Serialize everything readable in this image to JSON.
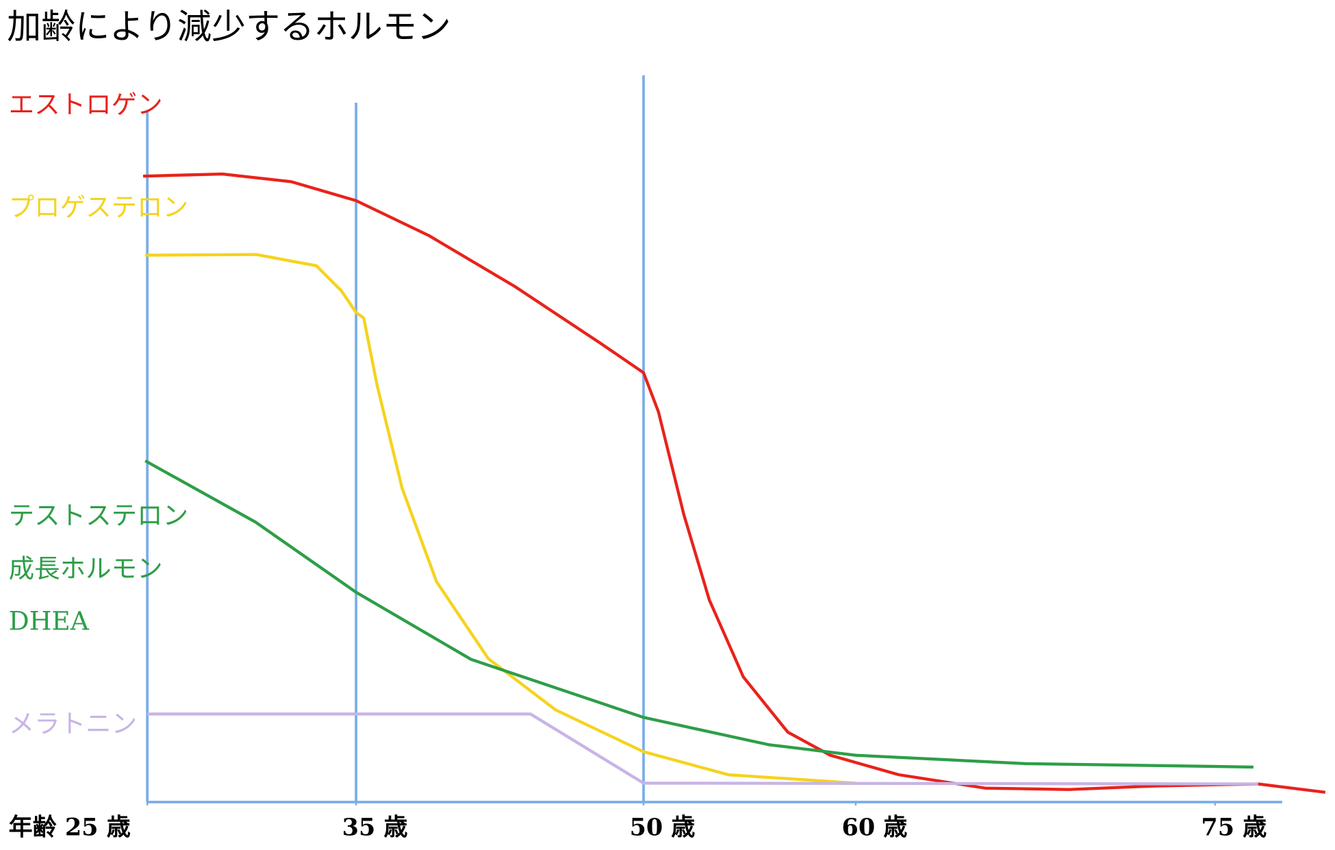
{
  "chart_data": {
    "type": "line",
    "title": "加齢により減少するホルモン",
    "xlim": [
      25,
      77.8
    ],
    "ylim": [
      0,
      100
    ],
    "xticks": [
      {
        "value": 25,
        "label": "年齢 25 歳"
      },
      {
        "value": 35,
        "label": "35 歳"
      },
      {
        "value": 50,
        "label": "50 歳"
      },
      {
        "value": 60,
        "label": "60 歳"
      },
      {
        "value": 75,
        "label": "75 歳"
      }
    ],
    "vlines": [
      25,
      35,
      50
    ],
    "axis_color": "#7aaee6",
    "series": [
      {
        "names": [
          "エストロゲン"
        ],
        "color": "#e8231c",
        "x": [
          24.8,
          28.6,
          31.9,
          35,
          38.8,
          43.3,
          47.7,
          50,
          50.7,
          51.9,
          53.1,
          54.7,
          56.8,
          58.8,
          61.8,
          65.4,
          68.9,
          72.5,
          76.8,
          79.6
        ],
        "values": [
          89.5,
          89.8,
          88.7,
          86.0,
          81.0,
          73.7,
          65.7,
          61.4,
          55.8,
          41.1,
          28.9,
          17.9,
          10.0,
          6.7,
          3.9,
          2.0,
          1.8,
          2.3,
          2.6,
          1.4
        ]
      },
      {
        "names": [
          "プロゲステロン"
        ],
        "color": "#f5d31e",
        "x": [
          24.9,
          30.2,
          33.1,
          34.3,
          35,
          35.4,
          36.1,
          37.4,
          39.2,
          41.9,
          45.4,
          50,
          54,
          60
        ],
        "values": [
          78.2,
          78.3,
          76.7,
          73.1,
          70.0,
          69.2,
          59.6,
          44.9,
          31.5,
          20.5,
          13.2,
          7.2,
          3.9,
          2.7
        ]
      },
      {
        "names": [
          "テストステロン",
          "成長ホルモン",
          "DHEA"
        ],
        "color": "#2e9e48",
        "x": [
          24.9,
          30.2,
          35,
          41,
          50,
          55.9,
          60,
          67.1,
          76.6
        ],
        "values": [
          48.8,
          40.0,
          30.0,
          20.4,
          12.1,
          8.2,
          6.7,
          5.5,
          5.0
        ]
      },
      {
        "names": [
          "メラトニン"
        ],
        "color": "#c8b4e6",
        "x": [
          25,
          44.1,
          50,
          76.8
        ],
        "values": [
          12.6,
          12.6,
          2.7,
          2.6
        ]
      }
    ]
  }
}
